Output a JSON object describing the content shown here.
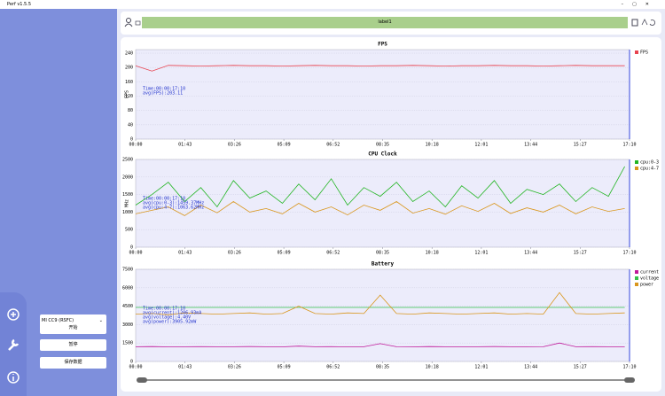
{
  "window": {
    "title": "Perf v1.5.5"
  },
  "toolbar": {
    "label": "label1"
  },
  "sidebar": {
    "device": "MI CC9 (RSFC)",
    "buttons": [
      "开始",
      "暂停",
      "保存数据"
    ]
  },
  "chart_data": [
    {
      "type": "line",
      "title": "FPS",
      "y_label": "FPS",
      "xlim": [
        0,
        1030
      ],
      "ylim": [
        0,
        250
      ],
      "yticks": [
        0,
        40,
        80,
        120,
        160,
        200,
        240
      ],
      "xticks": [
        {
          "value": 0,
          "label": "00:00"
        },
        {
          "value": 103,
          "label": "01:43"
        },
        {
          "value": 206,
          "label": "03:26"
        },
        {
          "value": 309,
          "label": "05:09"
        },
        {
          "value": 412,
          "label": "06:52"
        },
        {
          "value": 515,
          "label": "08:35"
        },
        {
          "value": 618,
          "label": "10:18"
        },
        {
          "value": 721,
          "label": "12:01"
        },
        {
          "value": 824,
          "label": "13:44"
        },
        {
          "value": 927,
          "label": "15:27"
        },
        {
          "value": 1030,
          "label": "17:10"
        }
      ],
      "x": [
        0,
        34,
        68,
        102,
        136,
        170,
        204,
        238,
        272,
        306,
        340,
        374,
        408,
        442,
        476,
        510,
        544,
        578,
        612,
        646,
        680,
        714,
        748,
        782,
        816,
        850,
        884,
        918,
        952,
        986,
        1020
      ],
      "series": [
        {
          "name": "FPS",
          "color": "#e8434f",
          "values": [
            205,
            190,
            206,
            205,
            204,
            205,
            206,
            205,
            205,
            204,
            205,
            206,
            205,
            205,
            204,
            205,
            205,
            206,
            205,
            204,
            205,
            205,
            206,
            205,
            205,
            204,
            205,
            206,
            205,
            205,
            205
          ]
        }
      ],
      "annotation": [
        "Time:00:00:17:10",
        "avg(FPS):203.11"
      ]
    },
    {
      "type": "line",
      "title": "CPU Clock",
      "y_label": "MHz",
      "xlim": [
        0,
        1030
      ],
      "ylim": [
        0,
        2500
      ],
      "yticks": [
        0,
        500,
        1000,
        1500,
        2000,
        2500
      ],
      "xticks": [
        {
          "value": 0,
          "label": "00:00"
        },
        {
          "value": 103,
          "label": "01:43"
        },
        {
          "value": 206,
          "label": "03:26"
        },
        {
          "value": 309,
          "label": "05:09"
        },
        {
          "value": 412,
          "label": "06:52"
        },
        {
          "value": 515,
          "label": "08:35"
        },
        {
          "value": 618,
          "label": "10:18"
        },
        {
          "value": 721,
          "label": "12:01"
        },
        {
          "value": 824,
          "label": "13:44"
        },
        {
          "value": 927,
          "label": "15:27"
        },
        {
          "value": 1030,
          "label": "17:10"
        }
      ],
      "x": [
        0,
        34,
        68,
        102,
        136,
        170,
        204,
        238,
        272,
        306,
        340,
        374,
        408,
        442,
        476,
        510,
        544,
        578,
        612,
        646,
        680,
        714,
        748,
        782,
        816,
        850,
        884,
        918,
        952,
        986,
        1020
      ],
      "series": [
        {
          "name": "cpu:0-3",
          "color": "#22b522",
          "values": [
            1200,
            1500,
            1850,
            1300,
            1700,
            1150,
            1900,
            1400,
            1600,
            1250,
            1800,
            1350,
            1950,
            1200,
            1700,
            1450,
            1850,
            1300,
            1600,
            1150,
            1750,
            1400,
            1900,
            1250,
            1650,
            1500,
            1800,
            1300,
            1700,
            1450,
            2300
          ]
        },
        {
          "name": "cpu:4-7",
          "color": "#d9961c",
          "values": [
            950,
            1050,
            1150,
            900,
            1200,
            980,
            1300,
            1000,
            1100,
            950,
            1250,
            1000,
            1150,
            920,
            1200,
            1050,
            1300,
            970,
            1100,
            940,
            1180,
            1020,
            1250,
            960,
            1120,
            1000,
            1200,
            950,
            1150,
            1020,
            1100
          ]
        }
      ],
      "annotation": [
        "Time:00:00:17:10",
        "avg(cpu:0-3):1459.37MHz",
        "avg(cpu:4-7):1063.62MHz"
      ]
    },
    {
      "type": "line",
      "title": "Battery",
      "y_label": "",
      "xlim": [
        0,
        1030
      ],
      "ylim": [
        0,
        7500
      ],
      "yticks": [
        0,
        1500,
        3000,
        4500,
        6000,
        7500
      ],
      "xticks": [
        {
          "value": 0,
          "label": "00:00"
        },
        {
          "value": 103,
          "label": "01:43"
        },
        {
          "value": 206,
          "label": "03:26"
        },
        {
          "value": 309,
          "label": "05:09"
        },
        {
          "value": 412,
          "label": "06:52"
        },
        {
          "value": 515,
          "label": "08:35"
        },
        {
          "value": 618,
          "label": "10:18"
        },
        {
          "value": 721,
          "label": "12:01"
        },
        {
          "value": 824,
          "label": "13:44"
        },
        {
          "value": 927,
          "label": "15:27"
        },
        {
          "value": 1030,
          "label": "17:10"
        }
      ],
      "x": [
        0,
        34,
        68,
        102,
        136,
        170,
        204,
        238,
        272,
        306,
        340,
        374,
        408,
        442,
        476,
        510,
        544,
        578,
        612,
        646,
        680,
        714,
        748,
        782,
        816,
        850,
        884,
        918,
        952,
        986,
        1020
      ],
      "series": [
        {
          "name": "current",
          "color": "#c0189a",
          "values": [
            1200,
            1210,
            1190,
            1200,
            1205,
            1195,
            1200,
            1210,
            1200,
            1190,
            1250,
            1200,
            1205,
            1195,
            1200,
            1450,
            1200,
            1190,
            1210,
            1200,
            1195,
            1200,
            1210,
            1200,
            1190,
            1200,
            1500,
            1200,
            1205,
            1195,
            1200
          ]
        },
        {
          "name": "voltage",
          "color": "#33c24a",
          "values": [
            4400,
            4400,
            4400,
            4400,
            4400,
            4400,
            4400,
            4400,
            4400,
            4400,
            4400,
            4400,
            4400,
            4400,
            4400,
            4400,
            4400,
            4400,
            4400,
            4400,
            4400,
            4400,
            4400,
            4400,
            4400,
            4400,
            4400,
            4400,
            4400,
            4400,
            4400
          ]
        },
        {
          "name": "power",
          "color": "#d9961c",
          "values": [
            3850,
            3900,
            3800,
            3950,
            3900,
            3850,
            3900,
            3950,
            3850,
            3900,
            4500,
            3900,
            3850,
            3950,
            3900,
            5400,
            3900,
            3850,
            3950,
            3900,
            3850,
            3900,
            3950,
            3850,
            3900,
            3850,
            5600,
            3900,
            3850,
            3900,
            3950
          ]
        }
      ],
      "annotation": [
        "Time:00:00:17:10",
        "avg(current):1206.93mA",
        "avg(voltage):4.40V",
        "avg(power):3905.92mW"
      ]
    }
  ]
}
